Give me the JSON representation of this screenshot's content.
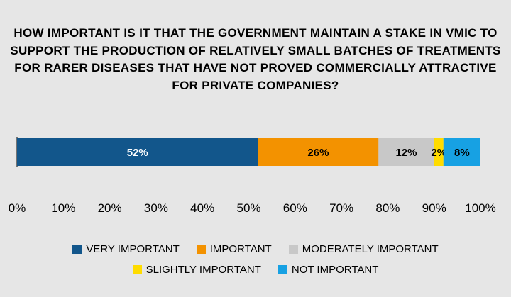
{
  "chart_data": {
    "type": "bar",
    "orientation": "horizontal-stacked",
    "title": "HOW IMPORTANT IS IT THAT THE GOVERNMENT MAINTAIN A STAKE IN VMIC TO SUPPORT THE PRODUCTION OF RELATIVELY SMALL BATCHES OF TREATMENTS FOR RARER DISEASES THAT HAVE NOT PROVED COMMERCIALLY ATTRACTIVE FOR PRIVATE COMPANIES?",
    "xlabel": "",
    "ylabel": "",
    "xlim": [
      0,
      100
    ],
    "x_ticks": [
      "0%",
      "10%",
      "20%",
      "30%",
      "40%",
      "50%",
      "60%",
      "70%",
      "80%",
      "90%",
      "100%"
    ],
    "grid": false,
    "legend_position": "bottom",
    "series": [
      {
        "name": "VERY IMPORTANT",
        "value": 52,
        "label": "52%",
        "color": "#12568b",
        "label_color": "#ffffff"
      },
      {
        "name": "IMPORTANT",
        "value": 26,
        "label": "26%",
        "color": "#f39200",
        "label_color": "#000000"
      },
      {
        "name": "MODERATELY IMPORTANT",
        "value": 12,
        "label": "12%",
        "color": "#c8c8c8",
        "label_color": "#000000"
      },
      {
        "name": "SLIGHTLY IMPORTANT",
        "value": 2,
        "label": "2%",
        "color": "#ffdc00",
        "label_color": "#000000"
      },
      {
        "name": "NOT IMPORTANT",
        "value": 8,
        "label": "8%",
        "color": "#17a1e3",
        "label_color": "#000000"
      }
    ]
  }
}
